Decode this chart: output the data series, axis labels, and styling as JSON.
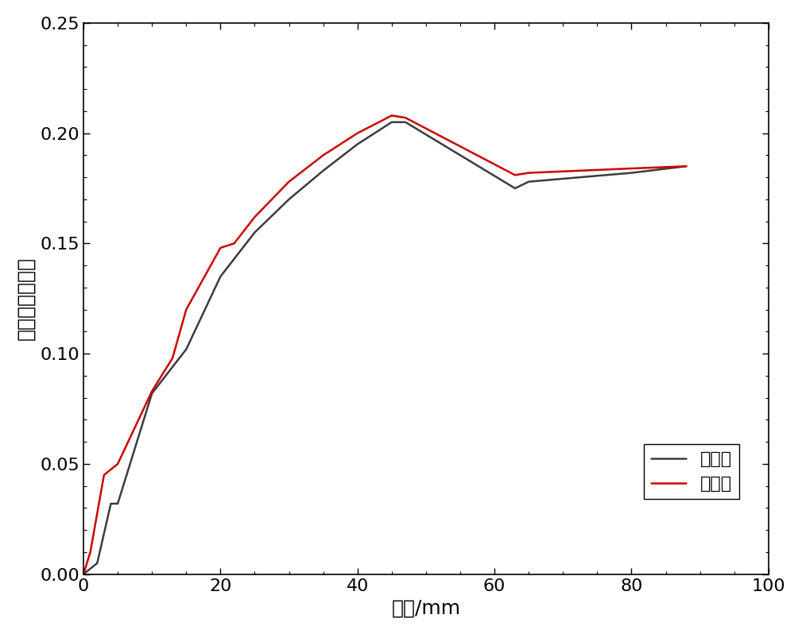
{
  "hand_x": [
    0,
    2,
    4,
    5,
    10,
    15,
    20,
    25,
    30,
    35,
    40,
    45,
    47,
    63,
    65,
    80,
    88
  ],
  "hand_y": [
    0.0,
    0.005,
    0.032,
    0.032,
    0.082,
    0.102,
    0.135,
    0.155,
    0.17,
    0.183,
    0.195,
    0.205,
    0.205,
    0.175,
    0.178,
    0.182,
    0.185
  ],
  "prog_x": [
    0,
    1,
    3,
    5,
    10,
    13,
    15,
    20,
    22,
    25,
    30,
    35,
    40,
    45,
    47,
    63,
    65,
    80,
    88
  ],
  "prog_y": [
    0.0,
    0.01,
    0.045,
    0.05,
    0.083,
    0.098,
    0.12,
    0.148,
    0.15,
    0.162,
    0.178,
    0.19,
    0.2,
    0.208,
    0.207,
    0.181,
    0.182,
    0.184,
    0.185
  ],
  "xlabel": "位移/mm",
  "ylabel": "等效黏滑阻尼比",
  "legend_hand": "手算値",
  "legend_prog": "程序値",
  "xlim": [
    0,
    100
  ],
  "ylim": [
    0.0,
    0.25
  ],
  "xticks": [
    0,
    20,
    40,
    60,
    80,
    100
  ],
  "yticks": [
    0.0,
    0.05,
    0.1,
    0.15,
    0.2,
    0.25
  ],
  "hand_color": "#3c3c3c",
  "prog_color": "#cc0000",
  "linewidth": 1.8,
  "background_color": "#ffffff",
  "label_fontsize": 18,
  "tick_fontsize": 16,
  "legend_fontsize": 16
}
